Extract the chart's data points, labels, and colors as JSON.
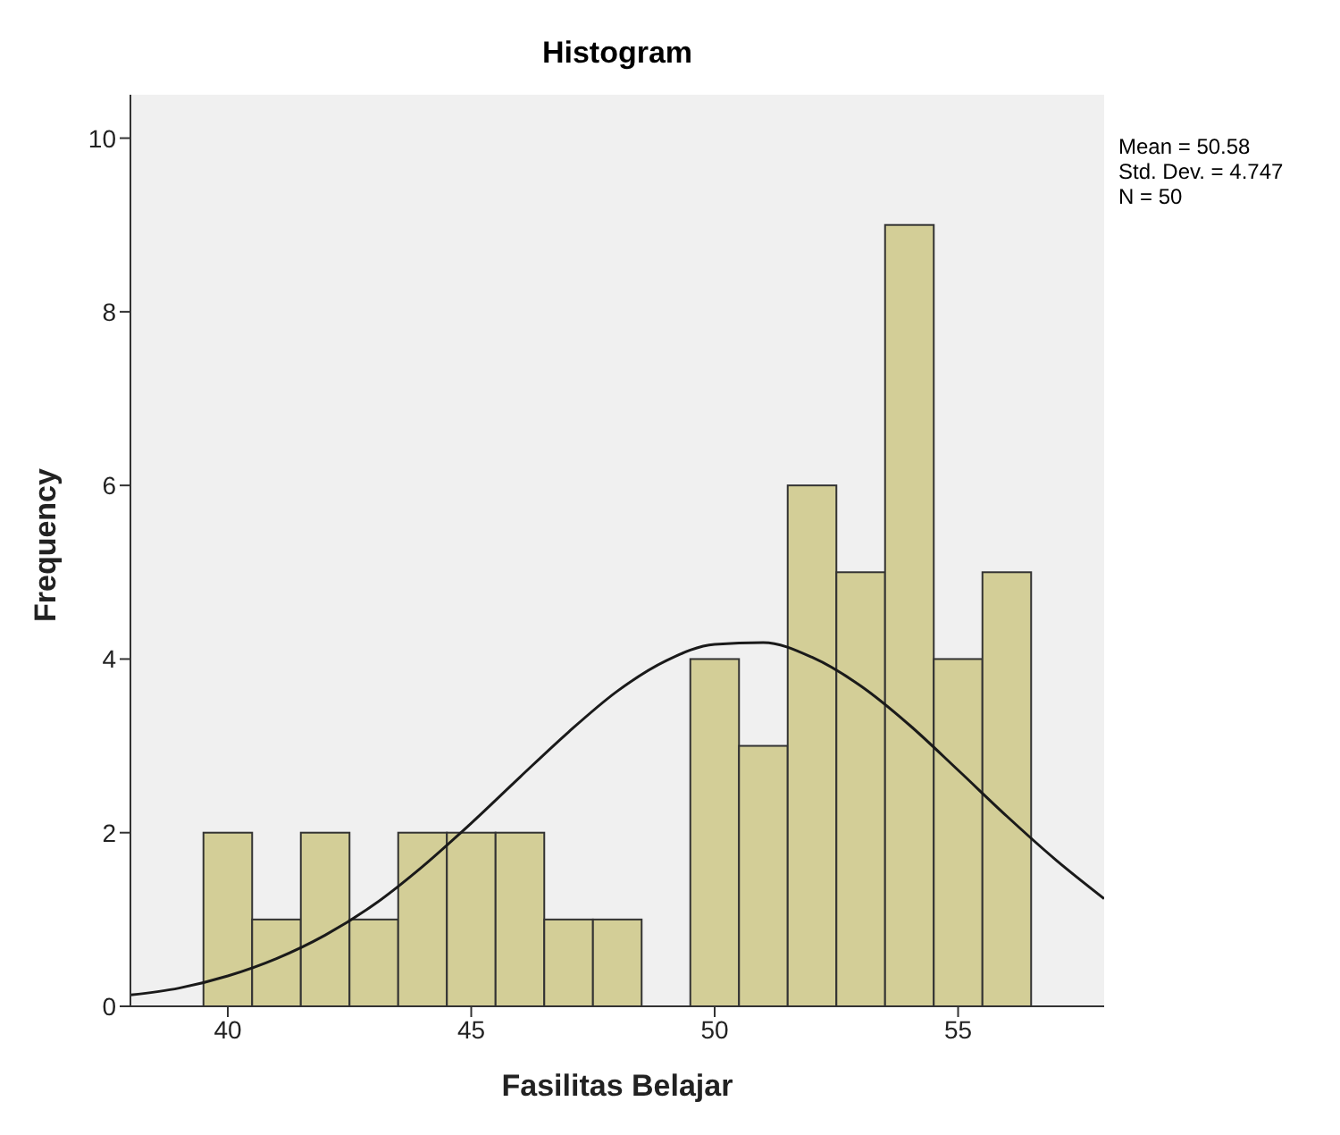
{
  "chart_data": {
    "type": "histogram",
    "title": "Histogram",
    "xlabel": "Fasilitas Belajar",
    "ylabel": "Frequency",
    "bins": [
      39.5,
      40.5,
      41.5,
      42.5,
      43.5,
      44.5,
      45.5,
      46.5,
      47.5,
      48.5,
      49.5,
      50.5,
      51.5,
      52.5,
      53.5,
      54.5,
      55.5,
      56.5
    ],
    "values": [
      2,
      1,
      2,
      1,
      2,
      2,
      2,
      1,
      1,
      0,
      4,
      3,
      6,
      5,
      9,
      4,
      5
    ],
    "color": "#d3ce97",
    "series": [
      {
        "type": "line",
        "color": "#1a1a1a",
        "x": [
          38,
          39,
          40,
          41,
          42,
          43,
          44,
          45,
          46,
          47,
          48,
          49,
          50,
          51,
          52,
          53,
          54,
          55,
          56,
          57,
          58
        ],
        "values": [
          0.13,
          0.21,
          0.35,
          0.55,
          0.82,
          1.17,
          1.61,
          2.11,
          2.64,
          3.16,
          3.63,
          3.98,
          4.17,
          4.19,
          4.02,
          3.69,
          3.24,
          2.72,
          2.19,
          1.69,
          1.24
        ]
      }
    ],
    "marker": "none",
    "xlim": [
      38,
      58
    ],
    "xticks": [
      40,
      45,
      50,
      55
    ],
    "ylim": [
      0,
      10.5
    ],
    "yticks": [
      0,
      2,
      4,
      6,
      8,
      10
    ],
    "annotations": [
      "Mean = 50.58",
      "Std. Dev. = 4.747",
      "N = 50"
    ]
  }
}
